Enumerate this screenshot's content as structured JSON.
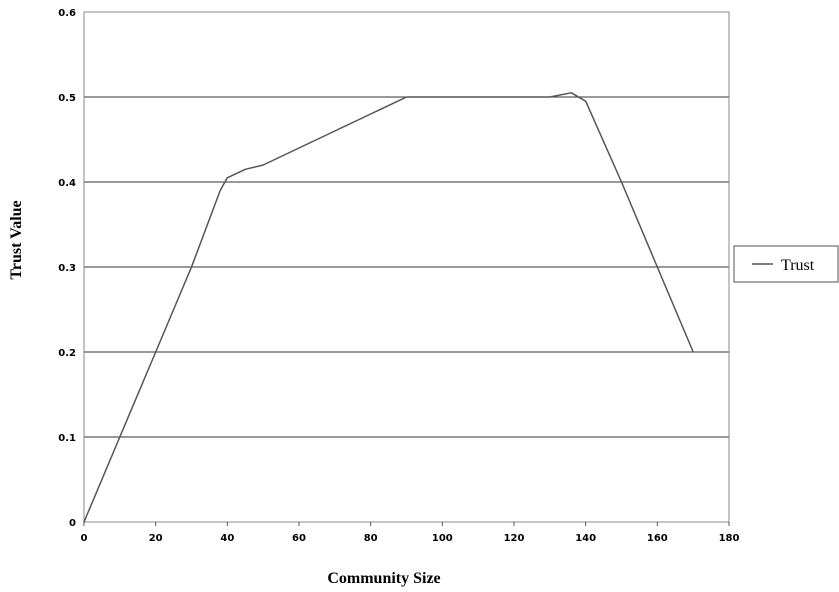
{
  "chart_data": {
    "type": "line",
    "title": "",
    "xlabel": "Community Size",
    "ylabel": "Trust Value",
    "xlim": [
      0,
      180
    ],
    "ylim": [
      0,
      0.6
    ],
    "x_ticks": [
      0,
      20,
      40,
      60,
      80,
      100,
      120,
      140,
      160,
      180
    ],
    "x_tick_labels": [
      "0",
      "20",
      "40",
      "60",
      "80",
      "100",
      "120",
      "140",
      "160",
      "180"
    ],
    "y_ticks": [
      0,
      0.1,
      0.2,
      0.3,
      0.4,
      0.5,
      0.6
    ],
    "y_tick_labels": [
      "0",
      "0.1",
      "0.2",
      "0.3",
      "0.4",
      "0.5",
      "0.6"
    ],
    "grid": "horizontal",
    "legend_position": "right",
    "series": [
      {
        "name": "Trust",
        "color": "#555555",
        "x": [
          0,
          10,
          20,
          30,
          38,
          40,
          45,
          50,
          60,
          70,
          80,
          90,
          100,
          110,
          120,
          130,
          136,
          140,
          150,
          160,
          170
        ],
        "y": [
          0,
          0.1,
          0.2,
          0.3,
          0.39,
          0.405,
          0.415,
          0.42,
          0.44,
          0.46,
          0.48,
          0.5,
          0.5,
          0.5,
          0.5,
          0.5,
          0.505,
          0.495,
          0.4,
          0.3,
          0.2
        ]
      }
    ]
  }
}
